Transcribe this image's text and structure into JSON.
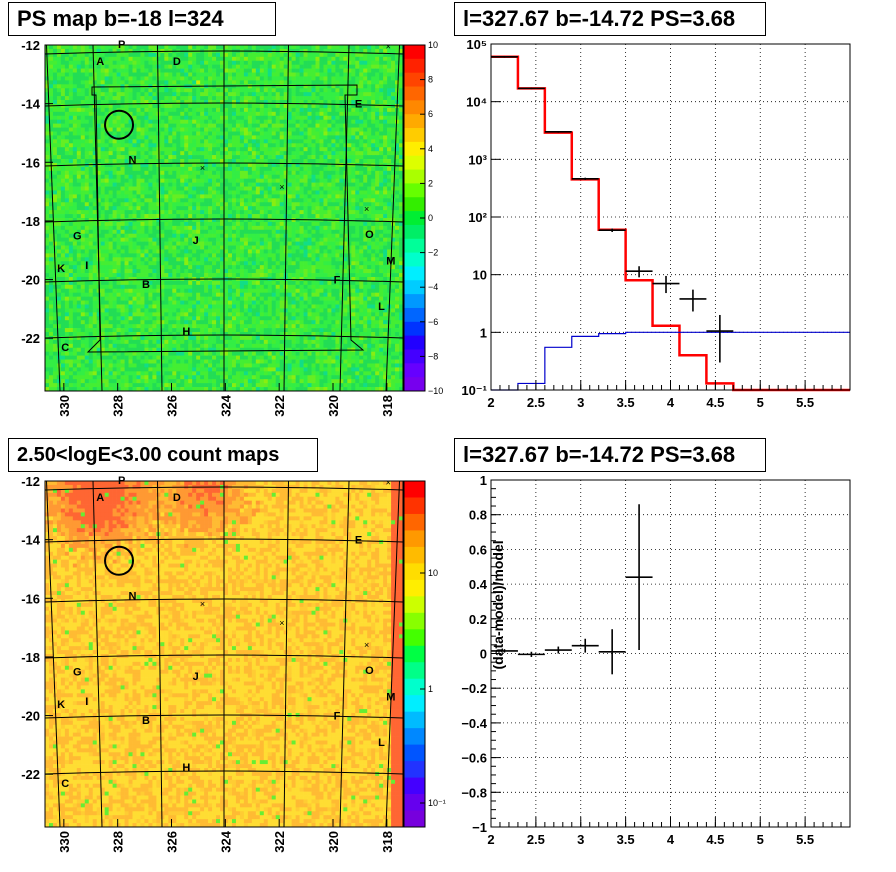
{
  "panels": {
    "tl": {
      "title": "PS map b=-18 l=324"
    },
    "tr": {
      "title": "l=327.67 b=-14.72 PS=3.68"
    },
    "bl": {
      "title": "2.50<logE<3.00 count maps"
    },
    "br": {
      "title": "l=327.67 b=-14.72 PS=3.68"
    }
  },
  "maps": {
    "x_ticks": [
      "330",
      "328",
      "326",
      "324",
      "322",
      "320",
      "318"
    ],
    "y_ticks": [
      "-12",
      "-14",
      "-16",
      "-18",
      "-20",
      "-22"
    ],
    "letters": [
      {
        "t": "P",
        "l": 327.85,
        "b": -11.97
      },
      {
        "t": "A",
        "l": 328.65,
        "b": -12.55
      },
      {
        "t": "D",
        "l": 325.8,
        "b": -12.55
      },
      {
        "t": "E",
        "l": 319.05,
        "b": -14.0
      },
      {
        "t": "N",
        "l": 327.45,
        "b": -15.9
      },
      {
        "t": "G",
        "l": 329.5,
        "b": -18.5
      },
      {
        "t": "J",
        "l": 325.1,
        "b": -18.65
      },
      {
        "t": "O",
        "l": 318.65,
        "b": -18.45
      },
      {
        "t": "K",
        "l": 330.1,
        "b": -19.6
      },
      {
        "t": "I",
        "l": 329.15,
        "b": -19.5
      },
      {
        "t": "M",
        "l": 317.85,
        "b": -19.35
      },
      {
        "t": "B",
        "l": 326.95,
        "b": -20.15
      },
      {
        "t": "F",
        "l": 319.85,
        "b": -20.0
      },
      {
        "t": "L",
        "l": 318.2,
        "b": -20.9
      },
      {
        "t": "H",
        "l": 325.45,
        "b": -21.75
      },
      {
        "t": "C",
        "l": 329.95,
        "b": -22.3
      }
    ],
    "crosses": [
      {
        "l": 324.85,
        "b": -16.2
      },
      {
        "l": 321.9,
        "b": -16.85
      },
      {
        "l": 318.75,
        "b": -17.6
      },
      {
        "l": 317.95,
        "b": -12.05
      }
    ],
    "circle": {
      "l": 327.95,
      "b": -14.72
    },
    "tl_colorbar": {
      "min": -10,
      "max": 10,
      "labels": [
        "10",
        "8",
        "6",
        "4",
        "2",
        "0",
        "−2",
        "−4",
        "−6",
        "−8",
        "−10"
      ]
    },
    "bl_colorbar": {
      "labels": [
        "10",
        "1",
        "10⁻¹"
      ]
    }
  },
  "chart_data": [
    {
      "type": "line",
      "panel": "top-right",
      "title": "l=327.67 b=-14.72 PS=3.68",
      "xlim": [
        2,
        6
      ],
      "ylim": [
        0.1,
        100000
      ],
      "yscale": "log",
      "grid": true,
      "x_tick_labels": [
        "2",
        "2.5",
        "3",
        "3.5",
        "4",
        "4.5",
        "5",
        "5.5"
      ],
      "y_tick_labels": [
        "10¹",
        "10⁻¹",
        "1",
        "10",
        "10²",
        "10³",
        "10⁴",
        "10⁵"
      ],
      "series": [
        {
          "style": "red-step",
          "edges": [
            2.0,
            2.3,
            2.6,
            2.9,
            3.2,
            3.5,
            3.8,
            4.1,
            4.4,
            4.7,
            5.0,
            5.3,
            5.6,
            5.9,
            6.0
          ],
          "values": [
            60000,
            17000,
            2900,
            450,
            60,
            8,
            1.3,
            0.4,
            0.13,
            0.1,
            0.1,
            0.1,
            0.1,
            0.1
          ]
        },
        {
          "style": "blue-step",
          "edges": [
            2.0,
            2.3,
            2.6,
            2.9,
            3.2,
            3.5,
            3.8,
            4.1,
            4.4,
            4.7,
            5.0,
            5.3,
            5.6,
            5.9,
            6.0
          ],
          "values": [
            0.1,
            0.13,
            0.55,
            0.85,
            0.95,
            1.0,
            1.0,
            1.0,
            1.0,
            1.0,
            1.0,
            1.0,
            1.0,
            1.0
          ]
        },
        {
          "style": "black-points",
          "x": [
            2.15,
            2.45,
            2.75,
            3.05,
            3.35,
            3.65,
            3.95,
            4.25,
            4.55
          ],
          "y": [
            60000,
            17000,
            3000,
            460,
            59,
            11.5,
            7,
            3.8,
            1.05
          ],
          "xerr": 0.15,
          "ylow": [
            58000,
            16500,
            2900,
            440,
            55,
            9,
            4.8,
            2.3,
            0.3
          ],
          "yhigh": [
            62000,
            17500,
            3100,
            480,
            63,
            14,
            9.5,
            5.5,
            2.0
          ]
        }
      ]
    },
    {
      "type": "scatter",
      "panel": "bottom-right",
      "title": "l=327.67 b=-14.72 PS=3.68",
      "ylabel": "(data-model)/model",
      "xlim": [
        2,
        6
      ],
      "ylim": [
        -1,
        1
      ],
      "grid": true,
      "x_tick_labels": [
        "2",
        "2.5",
        "3",
        "3.5",
        "4",
        "4.5",
        "5",
        "5.5"
      ],
      "y_tick_labels": [
        "1",
        "0.8",
        "0.6",
        "0.4",
        "0.2",
        "0",
        "−0.2",
        "−0.4",
        "−0.6",
        "−0.8",
        "−1"
      ],
      "x": [
        2.15,
        2.45,
        2.75,
        3.05,
        3.35,
        3.65
      ],
      "y": [
        0.015,
        -0.005,
        0.02,
        0.045,
        0.01,
        0.44
      ],
      "xerr": 0.15,
      "yerr_low": [
        0.01,
        0.015,
        0.02,
        0.04,
        0.13,
        0.42
      ],
      "yerr_high": [
        0.01,
        0.015,
        0.02,
        0.04,
        0.13,
        0.42
      ]
    }
  ]
}
